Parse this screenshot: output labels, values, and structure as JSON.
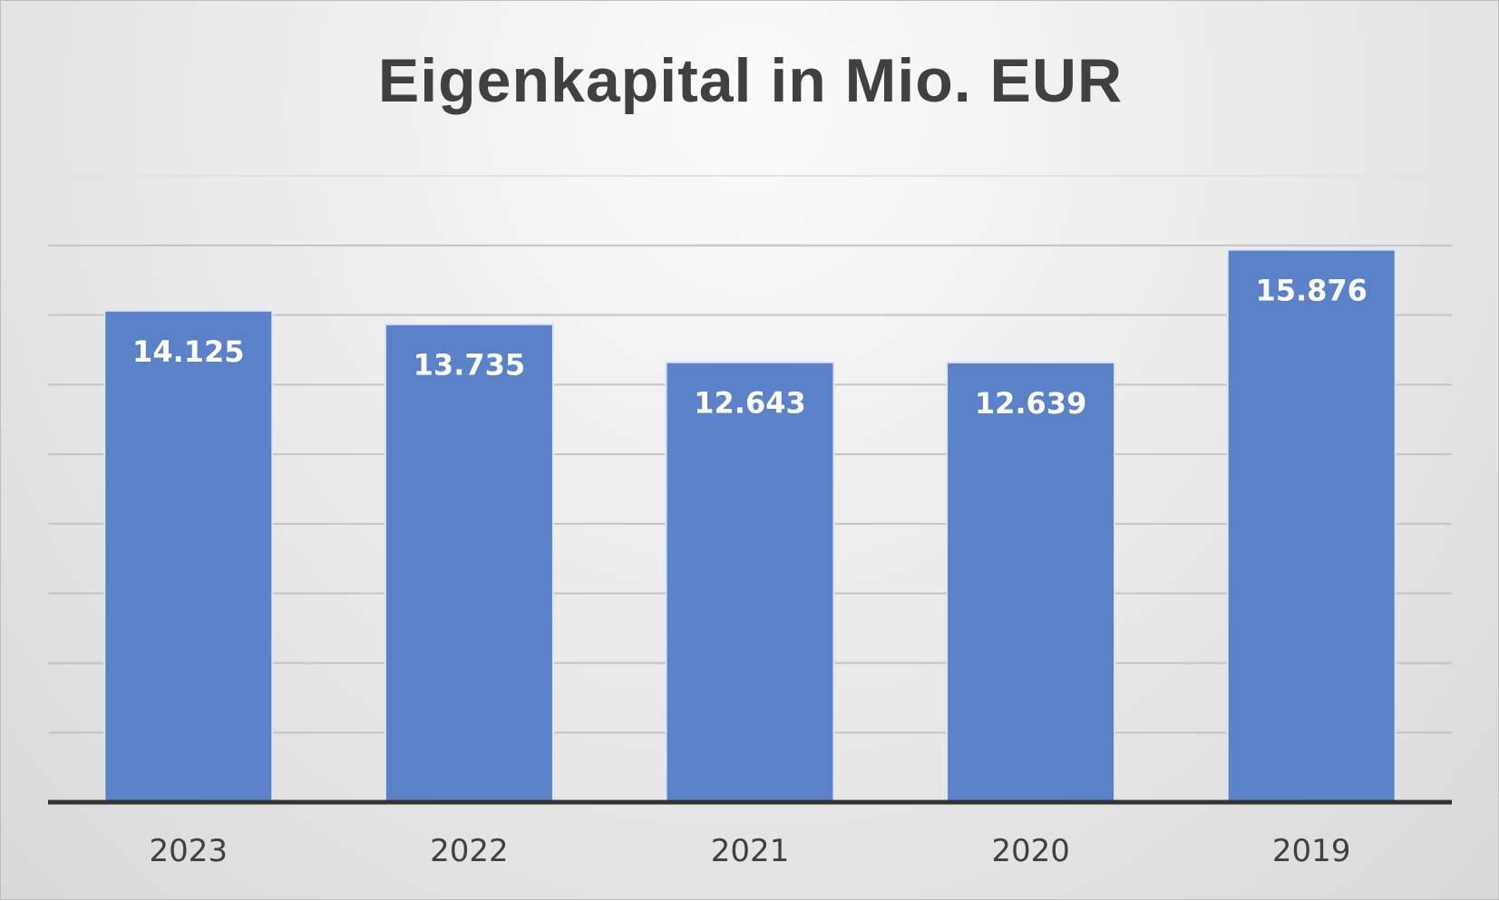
{
  "chart_data": {
    "type": "bar",
    "title": "Eigenkapital in Mio. EUR",
    "categories": [
      "2023",
      "2022",
      "2021",
      "2020",
      "2019"
    ],
    "values": [
      14125,
      13735,
      12643,
      12639,
      15876
    ],
    "data_labels": [
      "14.125",
      "13.735",
      "12.643",
      "12.639",
      "15.876"
    ],
    "xlabel": "",
    "ylabel": "",
    "ylim": [
      0,
      18000
    ],
    "grid": true,
    "legend": "none",
    "colors": {
      "bar": "#5b82c8",
      "title": "#404040"
    }
  }
}
